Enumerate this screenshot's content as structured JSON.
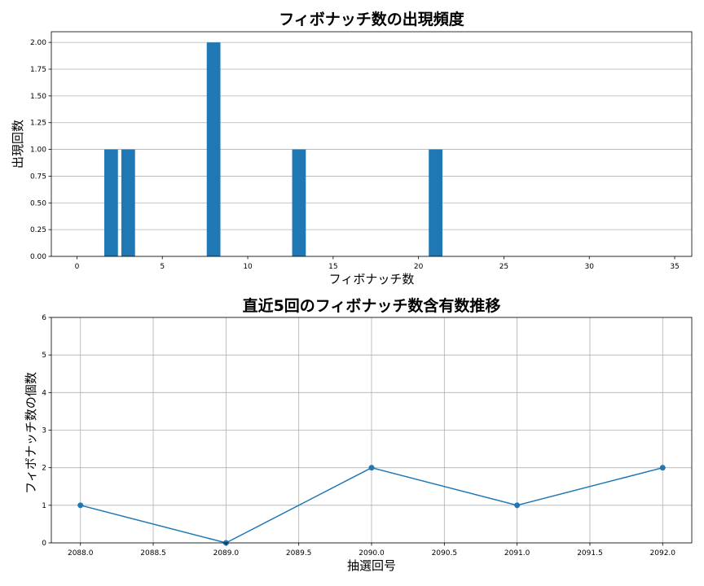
{
  "chart_data": [
    {
      "type": "bar",
      "title": "フィボナッチ数の出現頻度",
      "xlabel": "フィボナッチ数",
      "ylabel": "出現回数",
      "x": [
        2,
        3,
        8,
        13,
        21
      ],
      "values": [
        1,
        1,
        2,
        1,
        1
      ],
      "xlim": [
        -1.5,
        36
      ],
      "ylim": [
        0,
        2.1
      ],
      "xticks": [
        0,
        5,
        10,
        15,
        20,
        25,
        30,
        35
      ],
      "yticks": [
        0.0,
        0.25,
        0.5,
        0.75,
        1.0,
        1.25,
        1.5,
        1.75,
        2.0
      ],
      "grid": "y",
      "color": "#1f77b4"
    },
    {
      "type": "line",
      "title": "直近5回のフィボナッチ数含有数推移",
      "xlabel": "抽選回号",
      "ylabel": "フィボナッチ数の個数",
      "x": [
        2088,
        2089,
        2090,
        2091,
        2092
      ],
      "values": [
        1,
        0,
        2,
        1,
        2
      ],
      "xlim": [
        2087.8,
        2092.2
      ],
      "ylim": [
        0,
        6
      ],
      "xticks": [
        2088.0,
        2088.5,
        2089.0,
        2089.5,
        2090.0,
        2090.5,
        2091.0,
        2091.5,
        2092.0
      ],
      "yticks": [
        0,
        1,
        2,
        3,
        4,
        5,
        6
      ],
      "grid": "both",
      "marker": "circle",
      "color": "#1f77b4"
    }
  ]
}
